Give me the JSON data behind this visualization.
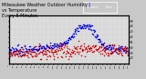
{
  "title": "Milwaukee Weather Outdoor Humidity",
  "title2": "vs Temperature",
  "title3": "Every 5 Minutes",
  "title_fontsize": 3.5,
  "bg_color": "#c8c8c8",
  "plot_bg_color": "#d8d8d8",
  "blue_color": "#0000dd",
  "red_color": "#cc0000",
  "legend_humidity_color": "#0000ff",
  "legend_temp_color": "#ff0000",
  "ylim": [
    10,
    100
  ],
  "xlim": [
    0,
    280
  ],
  "marker_size": 1.2,
  "grid_color": "#ffffff",
  "yticks": [
    20,
    30,
    40,
    50,
    60,
    70,
    80,
    90
  ],
  "n_points": 280
}
